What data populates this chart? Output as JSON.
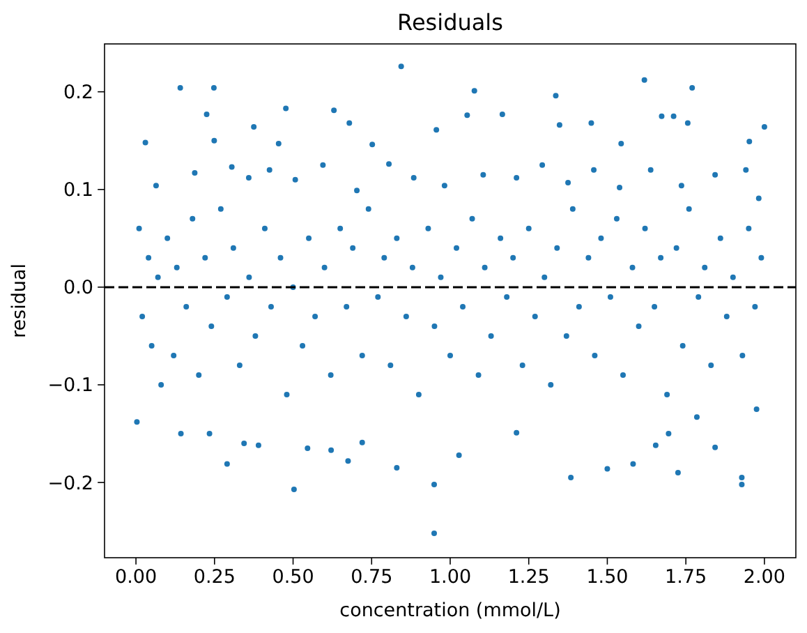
{
  "chart_data": {
    "type": "scatter",
    "title": "Residuals",
    "xlabel": "concentration (mmol/L)",
    "ylabel": "residual",
    "xlim": [
      -0.1,
      2.1
    ],
    "ylim": [
      -0.277,
      0.249
    ],
    "xticks": [
      {
        "value": 0,
        "label": "0.00"
      },
      {
        "value": 0.25,
        "label": "0.25"
      },
      {
        "value": 0.5,
        "label": "0.50"
      },
      {
        "value": 0.75,
        "label": "0.75"
      },
      {
        "value": 1,
        "label": "1.00"
      },
      {
        "value": 1.25,
        "label": "1.25"
      },
      {
        "value": 1.5,
        "label": "1.50"
      },
      {
        "value": 1.75,
        "label": "1.75"
      },
      {
        "value": 2,
        "label": "2.00"
      }
    ],
    "yticks": [
      {
        "value": -0.2,
        "label": "−0.2"
      },
      {
        "value": -0.1,
        "label": "−0.1"
      },
      {
        "value": 0,
        "label": "0.0"
      },
      {
        "value": 0.1,
        "label": "0.1"
      },
      {
        "value": 0.2,
        "label": "0.2"
      }
    ],
    "marker": "circle",
    "grid": false,
    "ref_lines": [
      {
        "axis": "y",
        "value": 0,
        "color": "#000000",
        "line_style": "dashed"
      }
    ],
    "series": [
      {
        "color": "#1f77b4",
        "x": [
          0.844,
          1.618,
          0.141,
          0.248,
          1.077,
          1.77,
          1.336,
          0.477,
          0.63,
          1.166,
          0.225,
          1.054,
          1.673,
          1.711,
          1.449,
          2.0,
          0.375,
          0.956,
          0.679,
          0.03,
          0.249,
          1.348,
          1.952,
          0.454,
          0.752,
          1.544,
          1.756,
          0.064,
          0.187,
          0.305,
          0.359,
          0.425,
          0.507,
          0.595,
          0.703,
          0.805,
          0.884,
          0.982,
          1.105,
          1.211,
          1.293,
          1.375,
          1.457,
          1.539,
          1.638,
          1.736,
          1.843,
          1.941,
          1.982,
          0.949,
          0.503,
          0.949,
          1.928,
          1.928,
          1.384,
          1.725,
          1.5,
          1.582,
          0.83,
          1.028,
          0.29,
          0.675,
          0.143,
          0.234,
          0.344,
          0.39,
          0.546,
          0.621,
          0.72,
          1.654,
          1.843,
          0.003,
          1.975,
          1.211,
          1.695,
          1.785,
          0.01,
          0.02,
          0.04,
          0.05,
          0.07,
          0.08,
          0.1,
          0.12,
          0.13,
          0.16,
          0.18,
          0.2,
          0.22,
          0.24,
          0.27,
          0.29,
          0.31,
          0.33,
          0.36,
          0.38,
          0.41,
          0.43,
          0.46,
          0.48,
          0.5,
          0.53,
          0.55,
          0.57,
          0.6,
          0.62,
          0.65,
          0.67,
          0.69,
          0.72,
          0.74,
          0.77,
          0.79,
          0.81,
          0.83,
          0.86,
          0.88,
          0.9,
          0.93,
          0.95,
          0.97,
          1.0,
          1.02,
          1.04,
          1.07,
          1.09,
          1.11,
          1.13,
          1.16,
          1.18,
          1.2,
          1.23,
          1.25,
          1.27,
          1.3,
          1.32,
          1.34,
          1.37,
          1.39,
          1.41,
          1.44,
          1.46,
          1.48,
          1.51,
          1.53,
          1.55,
          1.58,
          1.6,
          1.62,
          1.65,
          1.67,
          1.69,
          1.72,
          1.74,
          1.76,
          1.79,
          1.81,
          1.83,
          1.86,
          1.88,
          1.9,
          1.93,
          1.95,
          1.97,
          1.99
        ],
        "values": [
          0.226,
          0.212,
          0.204,
          0.204,
          0.201,
          0.204,
          0.196,
          0.183,
          0.181,
          0.177,
          0.177,
          0.176,
          0.175,
          0.175,
          0.168,
          0.164,
          0.164,
          0.161,
          0.168,
          0.148,
          0.15,
          0.166,
          0.149,
          0.147,
          0.146,
          0.147,
          0.168,
          0.104,
          0.117,
          0.123,
          0.112,
          0.12,
          0.11,
          0.125,
          0.099,
          0.126,
          0.112,
          0.104,
          0.115,
          0.112,
          0.125,
          0.107,
          0.12,
          0.102,
          0.12,
          0.104,
          0.115,
          0.12,
          0.091,
          -0.252,
          -0.207,
          -0.202,
          -0.202,
          -0.195,
          -0.195,
          -0.19,
          -0.186,
          -0.181,
          -0.185,
          -0.172,
          -0.181,
          -0.178,
          -0.15,
          -0.15,
          -0.16,
          -0.162,
          -0.165,
          -0.167,
          -0.159,
          -0.162,
          -0.164,
          -0.138,
          -0.125,
          -0.149,
          -0.15,
          -0.133,
          0.06,
          -0.03,
          0.03,
          -0.06,
          0.01,
          -0.1,
          0.05,
          -0.07,
          0.02,
          -0.02,
          0.07,
          -0.09,
          0.03,
          -0.04,
          0.08,
          -0.01,
          0.04,
          -0.08,
          0.01,
          -0.05,
          0.06,
          -0.02,
          0.03,
          -0.11,
          0.0,
          -0.06,
          0.05,
          -0.03,
          0.02,
          -0.09,
          0.06,
          -0.02,
          0.04,
          -0.07,
          0.08,
          -0.01,
          0.03,
          -0.08,
          0.05,
          -0.03,
          0.02,
          -0.11,
          0.06,
          -0.04,
          0.01,
          -0.07,
          0.04,
          -0.02,
          0.07,
          -0.09,
          0.02,
          -0.05,
          0.05,
          -0.01,
          0.03,
          -0.08,
          0.06,
          -0.03,
          0.01,
          -0.1,
          0.04,
          -0.05,
          0.08,
          -0.02,
          0.03,
          -0.07,
          0.05,
          -0.01,
          0.07,
          -0.09,
          0.02,
          -0.04,
          0.06,
          -0.02,
          0.03,
          -0.11,
          0.04,
          -0.06,
          0.08,
          -0.01,
          0.02,
          -0.08,
          0.05,
          -0.03,
          0.01,
          -0.07,
          0.06,
          -0.02,
          0.03
        ]
      }
    ]
  }
}
